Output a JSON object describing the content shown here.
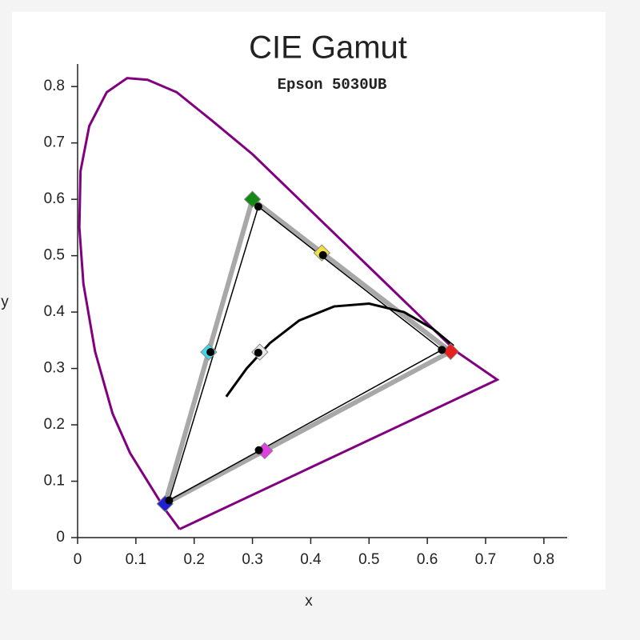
{
  "chart_data": {
    "type": "scatter",
    "title": "CIE Gamut",
    "subtitle": "Epson 5030UB",
    "xlabel": "x",
    "ylabel": "y",
    "xlim": [
      0,
      0.84
    ],
    "ylim": [
      0,
      0.84
    ],
    "xticks": [
      0,
      0.1,
      0.2,
      0.3,
      0.4,
      0.5,
      0.6,
      0.7,
      0.8
    ],
    "yticks": [
      0,
      0.1,
      0.2,
      0.3,
      0.4,
      0.5,
      0.6,
      0.7,
      0.8
    ],
    "series": [
      {
        "marker": "line",
        "color": "#800080",
        "x": [
          0.175,
          0.15,
          0.12,
          0.09,
          0.06,
          0.03,
          0.01,
          0.003,
          0.005,
          0.02,
          0.05,
          0.085,
          0.12,
          0.17,
          0.23,
          0.3,
          0.37,
          0.44,
          0.51,
          0.58,
          0.65,
          0.72,
          0.175
        ],
        "y": [
          0.015,
          0.05,
          0.1,
          0.15,
          0.22,
          0.33,
          0.45,
          0.55,
          0.65,
          0.73,
          0.79,
          0.815,
          0.812,
          0.79,
          0.74,
          0.68,
          0.61,
          0.54,
          0.47,
          0.4,
          0.33,
          0.28,
          0.015
        ]
      },
      {
        "marker": "triangle",
        "color": "#a8a8a8",
        "x": [
          0.64,
          0.3,
          0.15
        ],
        "y": [
          0.33,
          0.6,
          0.06
        ]
      },
      {
        "marker": "triangle",
        "color": "#000000",
        "x": [
          0.625,
          0.31,
          0.157
        ],
        "y": [
          0.333,
          0.587,
          0.066
        ]
      },
      {
        "marker": "line",
        "color": "#000000",
        "x": [
          0.255,
          0.29,
          0.33,
          0.38,
          0.44,
          0.5,
          0.56,
          0.61,
          0.645
        ],
        "y": [
          0.25,
          0.3,
          0.345,
          0.385,
          0.41,
          0.415,
          0.4,
          0.37,
          0.34
        ]
      },
      {
        "marker": "diamond",
        "colors": [
          "#e82020",
          "#138a13",
          "#2020d0",
          "#40d8e8",
          "#e040e0",
          "#f0e040",
          "#e8e8e8"
        ],
        "x": [
          0.64,
          0.3,
          0.15,
          0.225,
          0.321,
          0.419,
          0.3127
        ],
        "y": [
          0.33,
          0.6,
          0.06,
          0.329,
          0.154,
          0.505,
          0.329
        ]
      },
      {
        "marker": "dot",
        "color": "#000000",
        "x": [
          0.625,
          0.31,
          0.157,
          0.228,
          0.311,
          0.421,
          0.31
        ],
        "y": [
          0.333,
          0.587,
          0.066,
          0.329,
          0.155,
          0.501,
          0.328
        ]
      }
    ]
  }
}
